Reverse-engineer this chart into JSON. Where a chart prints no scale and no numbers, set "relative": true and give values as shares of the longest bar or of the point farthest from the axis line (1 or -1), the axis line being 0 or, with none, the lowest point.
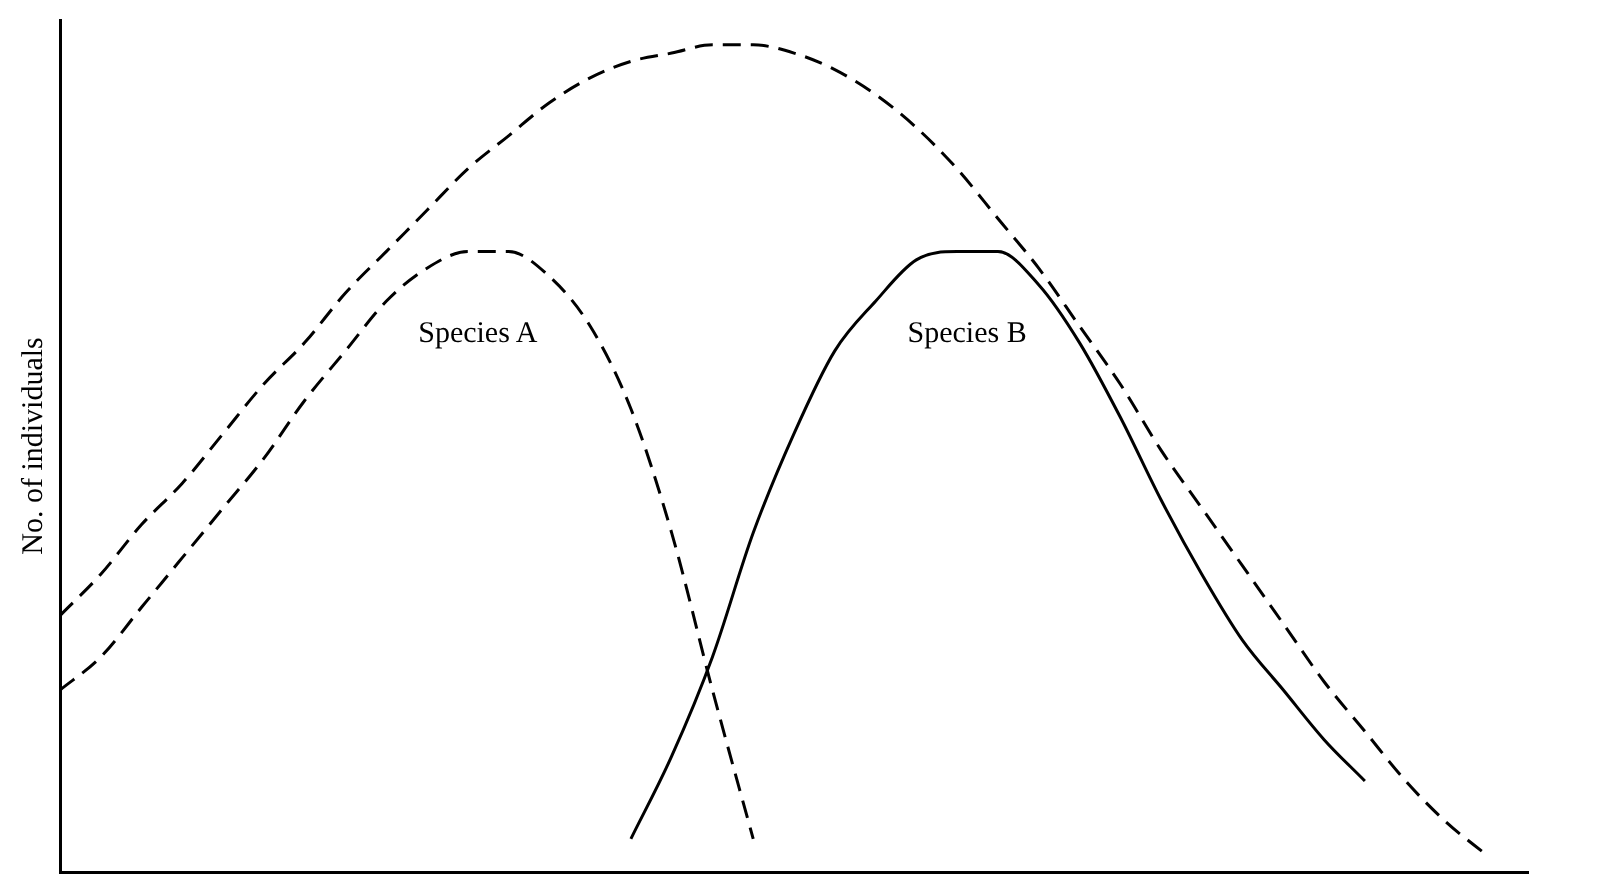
{
  "chart_data": {
    "type": "line",
    "relative": true,
    "ylabel": "No. of individuals",
    "legend": false,
    "grid": false,
    "marker": "none",
    "categories": [
      null,
      null,
      null,
      null,
      null,
      null,
      null,
      null,
      null,
      null,
      null,
      null,
      null,
      null,
      null,
      null,
      null,
      null,
      null,
      null,
      null,
      null,
      null,
      null,
      null,
      null,
      null,
      null,
      null,
      null,
      null,
      null,
      null,
      null,
      null,
      null,
      null
    ],
    "series": [
      {
        "color": "#000000",
        "line_style": "dashed",
        "values": [
          0.31,
          0.36,
          0.42,
          0.47,
          0.53,
          0.59,
          0.64,
          0.7,
          0.75,
          0.8,
          0.85,
          0.89,
          0.93,
          0.96,
          0.98,
          0.99,
          1.0,
          1.0,
          0.99,
          0.97,
          0.94,
          0.9,
          0.85,
          0.79,
          0.73,
          0.66,
          0.59,
          0.51,
          0.44,
          0.37,
          0.3,
          0.23,
          0.17,
          0.11,
          0.06,
          0.02,
          null
        ]
      },
      {
        "name": "Species A",
        "color": "#000000",
        "line_style": "dashed",
        "values": [
          0.22,
          0.26,
          0.32,
          0.38,
          0.44,
          0.5,
          0.57,
          0.63,
          0.69,
          0.73,
          0.75,
          0.75,
          0.72,
          0.66,
          0.56,
          0.41,
          0.22,
          0.04,
          null,
          null,
          null,
          null,
          null,
          null,
          null,
          null,
          null,
          null,
          null,
          null,
          null,
          null,
          null,
          null,
          null,
          null,
          null
        ]
      },
      {
        "name": "Species B",
        "color": "#000000",
        "line_style": "solid",
        "values": [
          null,
          null,
          null,
          null,
          null,
          null,
          null,
          null,
          null,
          null,
          null,
          null,
          null,
          null,
          0.04,
          0.14,
          0.26,
          0.41,
          0.53,
          0.63,
          0.69,
          0.74,
          0.75,
          0.75,
          0.71,
          0.64,
          0.55,
          0.45,
          0.36,
          0.28,
          0.22,
          0.16,
          0.11,
          null,
          null,
          null,
          null
        ]
      }
    ]
  }
}
